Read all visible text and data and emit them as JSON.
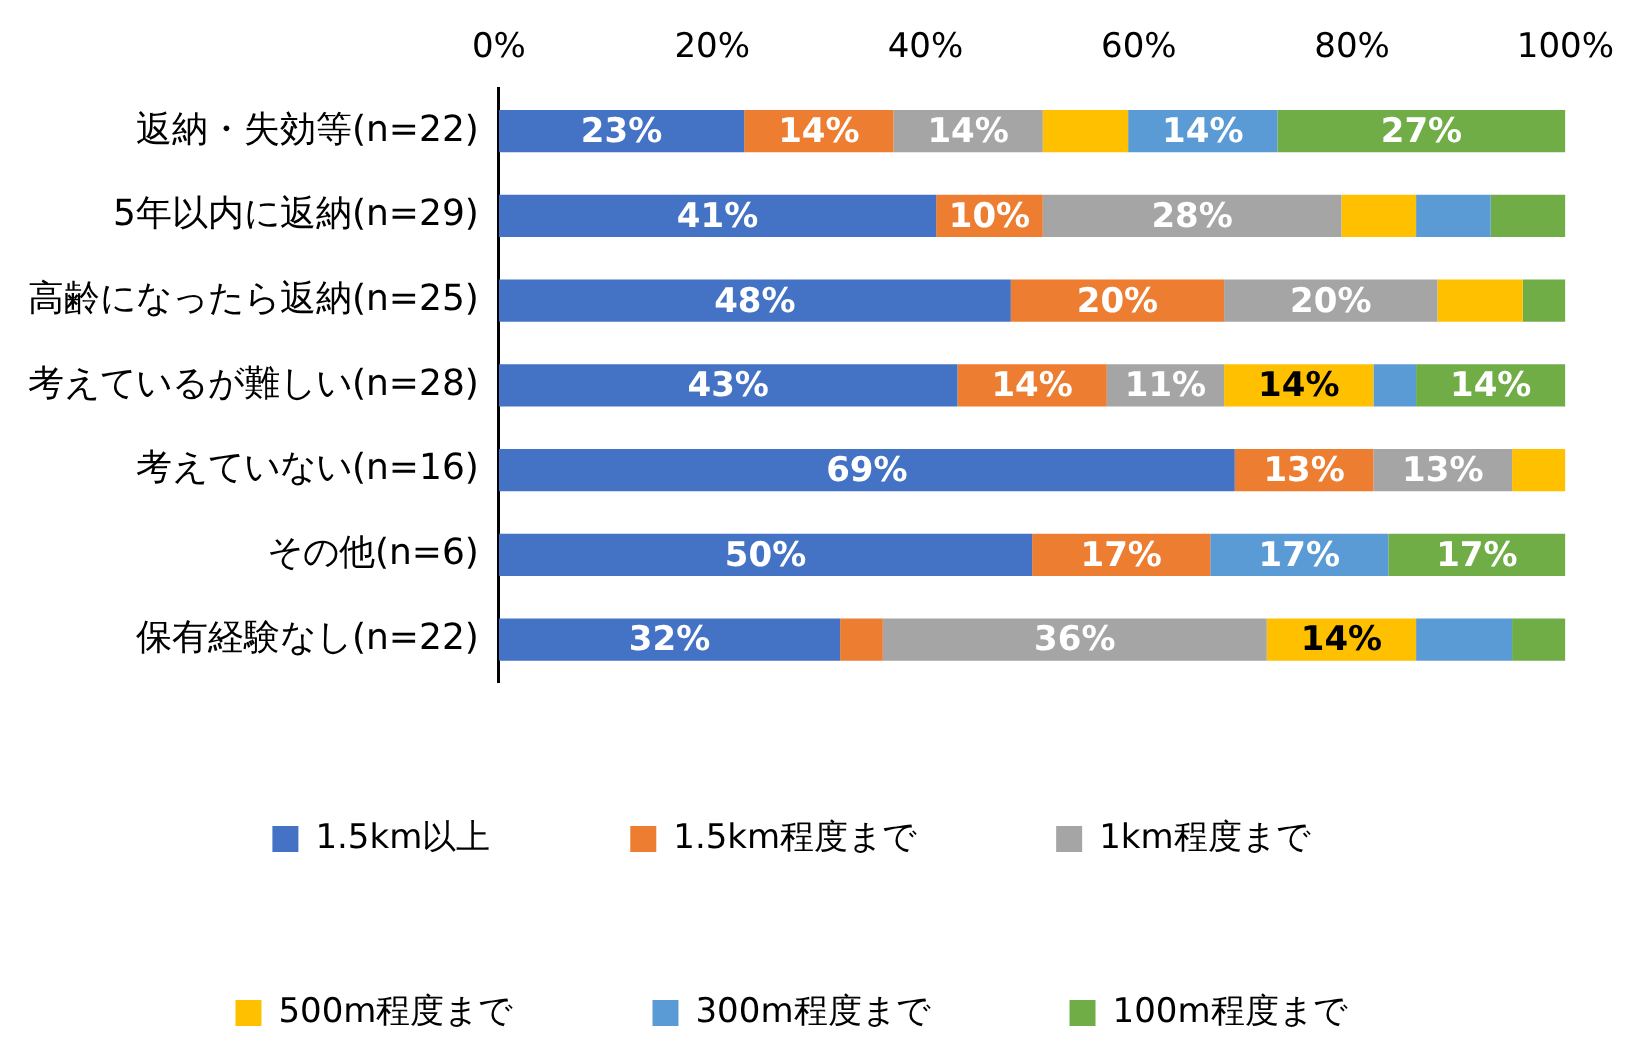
{
  "chart_data": {
    "type": "bar",
    "orientation": "horizontal",
    "stacked": true,
    "legend": "bottom",
    "categories": [
      "返納・失効等(n=22)",
      "5年以内に返納(n=29)",
      "高齢になったら返納(n=25)",
      "考えているが難しい(n=28)",
      "考えていない(n=16)",
      "その他(n=6)",
      "保有経験なし(n=22)"
    ],
    "xlim": [
      0,
      100
    ],
    "xticks": [
      {
        "value": 0,
        "label": "0%"
      },
      {
        "value": 20,
        "label": "20%"
      },
      {
        "value": 40,
        "label": "40%"
      },
      {
        "value": 60,
        "label": "60%"
      },
      {
        "value": 80,
        "label": "80%"
      },
      {
        "value": 100,
        "label": "100%"
      }
    ],
    "series": [
      {
        "name": "1.5km以上",
        "color": "#4472c4",
        "values": [
          23,
          41,
          48,
          43,
          69,
          50,
          32
        ],
        "value_labels": [
          "23%",
          "41%",
          "48%",
          "43%",
          "69%",
          "50%",
          "32%"
        ]
      },
      {
        "name": "1.5km程度まで",
        "color": "#ed7d31",
        "values": [
          14,
          10,
          20,
          14,
          13,
          16.7,
          4
        ],
        "value_labels": [
          "14%",
          "10%",
          "20%",
          "14%",
          "13%",
          "17%",
          null
        ]
      },
      {
        "name": "1km程度まで",
        "color": "#a5a5a5",
        "values": [
          14,
          28,
          20,
          11,
          13,
          0,
          36
        ],
        "value_labels": [
          "14%",
          "28%",
          "20%",
          "11%",
          "13%",
          null,
          "36%"
        ]
      },
      {
        "name": "500m程度まで",
        "color": "#ffc000",
        "values": [
          8,
          7,
          8,
          14,
          5,
          0,
          14
        ],
        "value_labels": [
          null,
          null,
          null,
          "14%",
          null,
          null,
          "14%"
        ]
      },
      {
        "name": "300m程度まで",
        "color": "#5b9bd5",
        "values": [
          14,
          7,
          0,
          4,
          0,
          16.7,
          9
        ],
        "value_labels": [
          "14%",
          null,
          null,
          null,
          null,
          "17%",
          null
        ]
      },
      {
        "name": "100m程度まで",
        "color": "#70ad47",
        "values": [
          27,
          7,
          4,
          14,
          0,
          16.6,
          5
        ],
        "value_labels": [
          "27%",
          null,
          null,
          "14%",
          null,
          "17%",
          null
        ]
      }
    ]
  }
}
